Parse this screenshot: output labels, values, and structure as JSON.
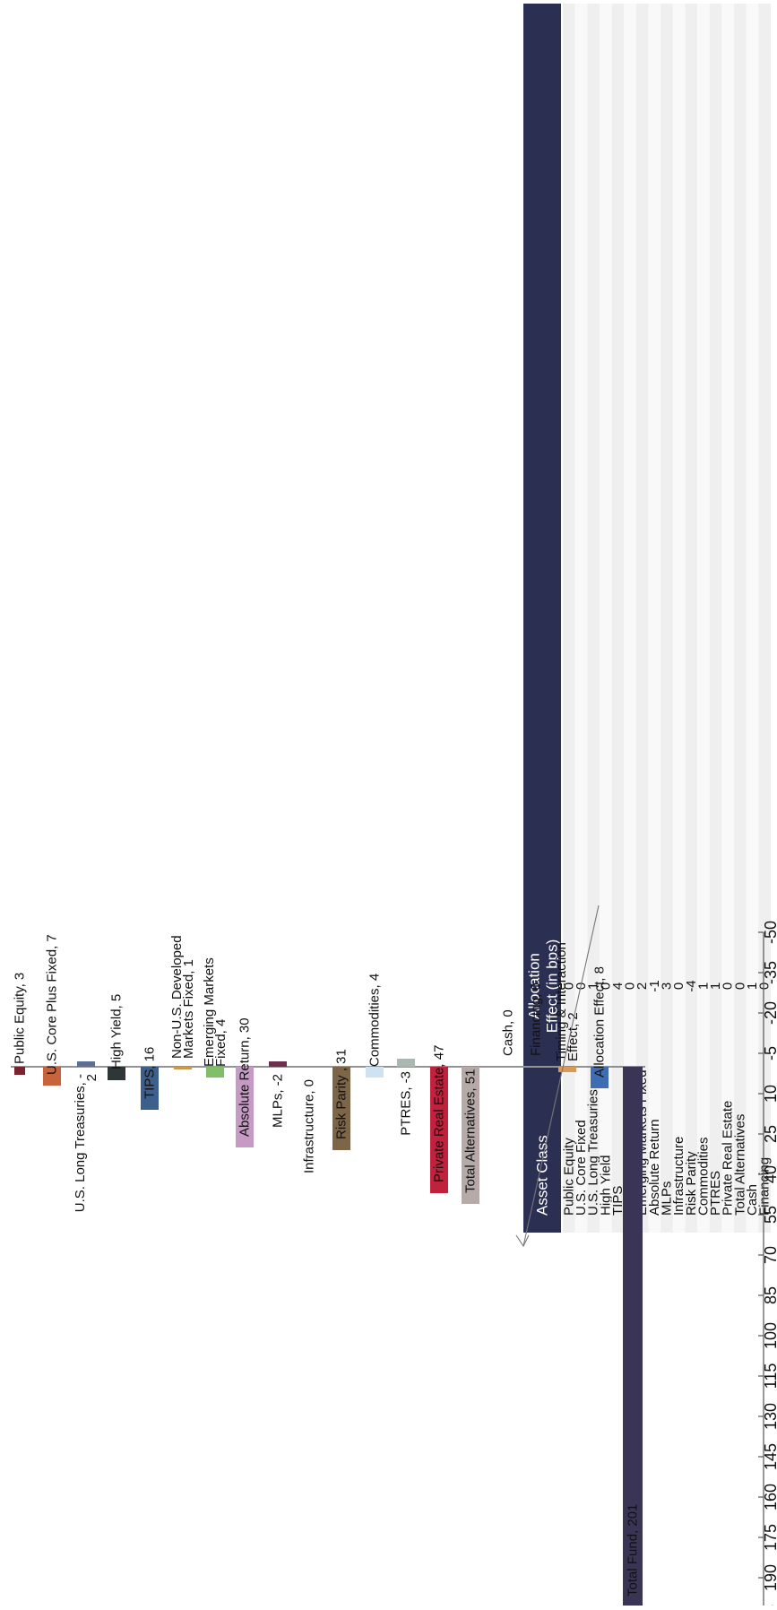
{
  "chart_data": [
    {
      "type": "bar",
      "orientation": "horizontal",
      "title": "",
      "xlabel": "",
      "ylabel": "",
      "xlim": [
        -50,
        220
      ],
      "ticks": [
        "-50",
        "-35",
        "-20",
        "-5",
        "10",
        "25",
        "40",
        "55",
        "70",
        "85",
        "100",
        "115",
        "130",
        "145",
        "160",
        "175",
        "190",
        "205",
        "220"
      ],
      "grid": false,
      "legend": "none",
      "bars": [
        {
          "name": "Public Equity",
          "value": 3,
          "label": "Public Equity, 3",
          "color": "#7b2230"
        },
        {
          "name": "U.S. Core Plus Fixed",
          "value": 7,
          "label": "U.S. Core Plus Fixed, 7",
          "color": "#c8643c"
        },
        {
          "name": "U.S. Long Treasuries",
          "value": -2,
          "label": "U.S. Long Treasuries, -2",
          "color": "#5a6e98"
        },
        {
          "name": "High Yield",
          "value": 5,
          "label": "High Yield, 5",
          "color": "#2f3638"
        },
        {
          "name": "TIPS",
          "value": 16,
          "label": "TIPS, 16",
          "color": "#3d5f8c"
        },
        {
          "name": "Non-U.S. Developed Markets Fixed",
          "value": 1,
          "label": "Non-U.S. Developed Markets Fixed, 1",
          "color": "#c89a4a"
        },
        {
          "name": "Emerging Markets Fixed",
          "value": 4,
          "label": "Emerging Markets Fixed, 4",
          "color": "#7fbf6a"
        },
        {
          "name": "Absolute Return",
          "value": 30,
          "label": "Absolute Return, 30",
          "color": "#c59ac4"
        },
        {
          "name": "MLPs",
          "value": -2,
          "label": "MLPs, -2",
          "color": "#6e2f4f"
        },
        {
          "name": "Infrastructure",
          "value": 0,
          "label": "Infrastructure, 0",
          "color": "#999999"
        },
        {
          "name": "Risk Parity",
          "value": 31,
          "label": "Risk Parity , 31",
          "color": "#7d6648"
        },
        {
          "name": "Commodities",
          "value": 4,
          "label": "Commodities, 4",
          "color": "#cfe2f2"
        },
        {
          "name": "PTRES",
          "value": -3,
          "label": "PTRES, -3",
          "color": "#a9b8b0"
        },
        {
          "name": "Private Real Estate",
          "value": 47,
          "label": "Private Real Estate, 47",
          "color": "#c0213d"
        },
        {
          "name": "Total Alternatives",
          "value": 51,
          "label": "Total Alternatives, 51",
          "color": "#b6aaa9"
        },
        {
          "name": "Cash",
          "value": 0,
          "label": "Cash, 0",
          "color": "#999999"
        },
        {
          "name": "Financing",
          "value": 0,
          "label": "Financing, 0",
          "color": "#999999"
        },
        {
          "name": "Timing & Interaction Effect",
          "value": 2,
          "label": "Timing & Interaction Effect, 2",
          "color": "#d89a55"
        },
        {
          "name": "Allocation Effect",
          "value": 8,
          "label": "Allocation Effect, 8",
          "color": "#3f6db3"
        },
        {
          "name": "Total Fund",
          "value": 201,
          "label": "Total Fund, 201",
          "color": "#3a3554"
        }
      ]
    },
    {
      "type": "table",
      "columns": [
        "Asset Class",
        "Allocation Effect (in bps)"
      ],
      "header_color": "#2b2f52",
      "rows": [
        [
          "Public Equity",
          "0"
        ],
        [
          "U.S. Core Fixed",
          "0"
        ],
        [
          "U.S. Long Treasuries",
          "1"
        ],
        [
          "High Yield",
          "0"
        ],
        [
          "TIPS",
          "4"
        ],
        [
          "Non-U.S. Fixed",
          "0"
        ],
        [
          "Emerging Markets Fixed",
          "2"
        ],
        [
          "Absolute Return",
          "-1"
        ],
        [
          "MLPs",
          "3"
        ],
        [
          "Infrastructure",
          "0"
        ],
        [
          "Risk Parity",
          "-4"
        ],
        [
          "Commodities",
          "1"
        ],
        [
          "PTRES",
          "1"
        ],
        [
          "Private Real Estate",
          "0"
        ],
        [
          "Total Alternatives",
          "0"
        ],
        [
          "Cash",
          "1"
        ],
        [
          "Financing",
          "0"
        ]
      ]
    }
  ]
}
